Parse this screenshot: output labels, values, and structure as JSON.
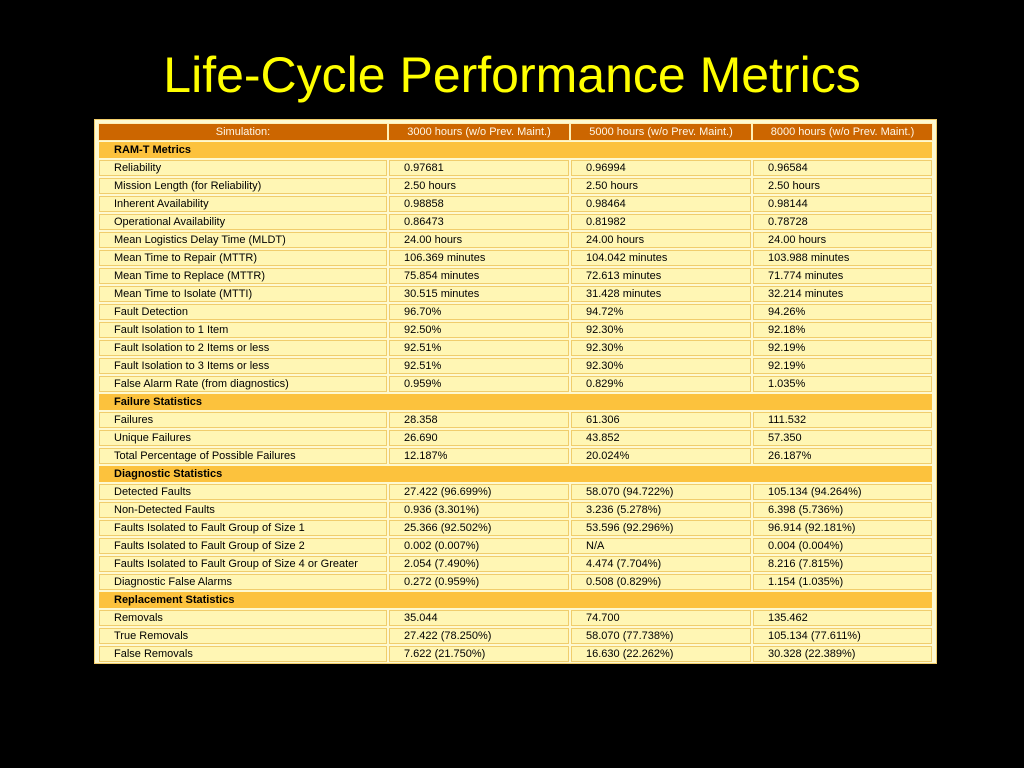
{
  "slide": {
    "title": "Life-Cycle Performance Metrics"
  },
  "table": {
    "header": {
      "label": "Simulation:",
      "columns": [
        "3000 hours (w/o Prev. Maint.)",
        "5000 hours (w/o Prev. Maint.)",
        "8000 hours (w/o Prev. Maint.)"
      ]
    },
    "sections": [
      {
        "title": "RAM-T Metrics",
        "rows": [
          {
            "label": "Reliability",
            "values": [
              "0.97681",
              "0.96994",
              "0.96584"
            ]
          },
          {
            "label": "Mission Length (for Reliability)",
            "values": [
              "2.50 hours",
              "2.50 hours",
              "2.50 hours"
            ]
          },
          {
            "label": "Inherent Availability",
            "values": [
              "0.98858",
              "0.98464",
              "0.98144"
            ]
          },
          {
            "label": "Operational Availability",
            "values": [
              "0.86473",
              "0.81982",
              "0.78728"
            ]
          },
          {
            "label": "Mean Logistics Delay Time (MLDT)",
            "values": [
              "24.00 hours",
              "24.00 hours",
              "24.00 hours"
            ]
          },
          {
            "label": "Mean Time to Repair (MTTR)",
            "values": [
              "106.369 minutes",
              "104.042 minutes",
              "103.988 minutes"
            ]
          },
          {
            "label": "Mean Time to Replace (MTTR)",
            "values": [
              "75.854 minutes",
              "72.613 minutes",
              "71.774 minutes"
            ]
          },
          {
            "label": "Mean Time to Isolate (MTTI)",
            "values": [
              "30.515 minutes",
              "31.428 minutes",
              "32.214 minutes"
            ]
          },
          {
            "label": "Fault Detection",
            "values": [
              "96.70%",
              "94.72%",
              "94.26%"
            ]
          },
          {
            "label": "Fault Isolation to 1 Item",
            "values": [
              "92.50%",
              "92.30%",
              "92.18%"
            ]
          },
          {
            "label": "Fault Isolation to 2 Items or less",
            "values": [
              "92.51%",
              "92.30%",
              "92.19%"
            ]
          },
          {
            "label": "Fault Isolation to 3 Items or less",
            "values": [
              "92.51%",
              "92.30%",
              "92.19%"
            ]
          },
          {
            "label": "False Alarm Rate (from diagnostics)",
            "values": [
              "0.959%",
              "0.829%",
              "1.035%"
            ]
          }
        ]
      },
      {
        "title": "Failure Statistics",
        "rows": [
          {
            "label": "Failures",
            "values": [
              "28.358",
              "61.306",
              "111.532"
            ]
          },
          {
            "label": "Unique Failures",
            "values": [
              "26.690",
              "43.852",
              "57.350"
            ]
          },
          {
            "label": "Total Percentage of Possible Failures",
            "values": [
              "12.187%",
              "20.024%",
              "26.187%"
            ]
          }
        ]
      },
      {
        "title": "Diagnostic Statistics",
        "rows": [
          {
            "label": "Detected Faults",
            "values": [
              "27.422 (96.699%)",
              "58.070 (94.722%)",
              "105.134 (94.264%)"
            ]
          },
          {
            "label": "Non-Detected Faults",
            "values": [
              "0.936 (3.301%)",
              "3.236 (5.278%)",
              "6.398 (5.736%)"
            ]
          },
          {
            "label": "Faults Isolated to Fault Group of Size 1",
            "values": [
              "25.366 (92.502%)",
              "53.596 (92.296%)",
              "96.914 (92.181%)"
            ]
          },
          {
            "label": "Faults Isolated to Fault Group of Size 2",
            "values": [
              "0.002 (0.007%)",
              "N/A",
              "0.004 (0.004%)"
            ]
          },
          {
            "label": "Faults Isolated to Fault Group of Size 4 or Greater",
            "values": [
              "2.054 (7.490%)",
              "4.474 (7.704%)",
              "8.216 (7.815%)"
            ]
          },
          {
            "label": "Diagnostic False Alarms",
            "values": [
              "0.272 (0.959%)",
              "0.508 (0.829%)",
              "1.154 (1.035%)"
            ]
          }
        ]
      },
      {
        "title": "Replacement Statistics",
        "rows": [
          {
            "label": "Removals",
            "values": [
              "35.044",
              "74.700",
              "135.462"
            ]
          },
          {
            "label": "True Removals",
            "values": [
              "27.422 (78.250%)",
              "58.070 (77.738%)",
              "105.134 (77.611%)"
            ]
          },
          {
            "label": "False Removals",
            "values": [
              "7.622 (21.750%)",
              "16.630 (22.262%)",
              "30.328 (22.389%)"
            ]
          }
        ]
      }
    ]
  },
  "colors": {
    "background": "#000000",
    "title": "#ffff00",
    "header_bg": "#cc6600",
    "section_bg": "#fcc23d",
    "cell_bg": "#fff6b4",
    "frame_bg": "#fef9d1"
  }
}
